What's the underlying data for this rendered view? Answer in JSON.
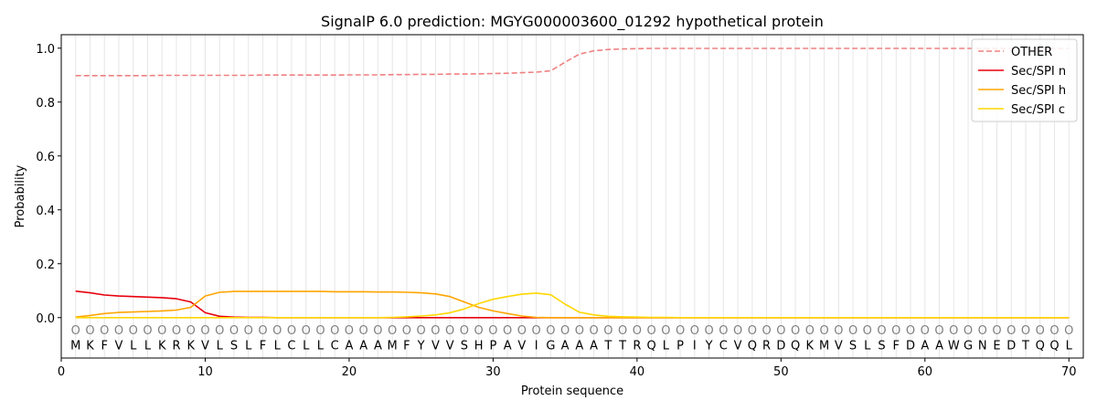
{
  "chart_data": {
    "type": "line",
    "title": "SignalP 6.0 prediction: MGYG000003600_01292 hypothetical protein",
    "xlabel": "Protein sequence",
    "ylabel": "Probability",
    "xlim": [
      0,
      71
    ],
    "ylim": [
      -0.15,
      1.05
    ],
    "xticks": [
      0,
      10,
      20,
      30,
      40,
      50,
      60,
      70
    ],
    "yticks": [
      0.0,
      0.2,
      0.4,
      0.6,
      0.8,
      1.0
    ],
    "ytick_labels": [
      "0.0",
      "0.2",
      "0.4",
      "0.6",
      "0.8",
      "1.0"
    ],
    "grid": "vertical lines at each residue",
    "legend_position": "top-right",
    "sequence": [
      "M",
      "K",
      "F",
      "V",
      "L",
      "L",
      "K",
      "R",
      "K",
      "V",
      "L",
      "S",
      "L",
      "F",
      "L",
      "C",
      "L",
      "L",
      "C",
      "A",
      "A",
      "A",
      "M",
      "F",
      "Y",
      "V",
      "V",
      "S",
      "H",
      "P",
      "A",
      "V",
      "I",
      "G",
      "A",
      "A",
      "A",
      "T",
      "T",
      "R",
      "Q",
      "L",
      "P",
      "I",
      "Y",
      "C",
      "V",
      "Q",
      "R",
      "D",
      "Q",
      "K",
      "M",
      "V",
      "S",
      "L",
      "S",
      "F",
      "D",
      "A",
      "A",
      "W",
      "G",
      "N",
      "E",
      "D",
      "T",
      "Q",
      "Q",
      "L"
    ],
    "region_marker": "O",
    "x": [
      1,
      2,
      3,
      4,
      5,
      6,
      7,
      8,
      9,
      10,
      11,
      12,
      13,
      14,
      15,
      16,
      17,
      18,
      19,
      20,
      21,
      22,
      23,
      24,
      25,
      26,
      27,
      28,
      29,
      30,
      31,
      32,
      33,
      34,
      35,
      36,
      37,
      38,
      39,
      40,
      41,
      42,
      43,
      44,
      45,
      46,
      47,
      48,
      49,
      50,
      51,
      52,
      53,
      54,
      55,
      56,
      57,
      58,
      59,
      60,
      61,
      62,
      63,
      64,
      65,
      66,
      67,
      68,
      69,
      70
    ],
    "series": [
      {
        "name": "OTHER",
        "color": "#f08080",
        "style": "dashed",
        "values": [
          0.898,
          0.898,
          0.898,
          0.898,
          0.898,
          0.898,
          0.899,
          0.899,
          0.899,
          0.899,
          0.899,
          0.899,
          0.899,
          0.9,
          0.9,
          0.9,
          0.9,
          0.9,
          0.9,
          0.901,
          0.901,
          0.901,
          0.902,
          0.902,
          0.903,
          0.903,
          0.904,
          0.904,
          0.905,
          0.906,
          0.907,
          0.909,
          0.911,
          0.916,
          0.948,
          0.978,
          0.99,
          0.995,
          0.997,
          0.998,
          0.999,
          0.999,
          0.999,
          0.999,
          0.999,
          0.999,
          0.999,
          0.999,
          0.999,
          0.999,
          0.999,
          0.999,
          0.999,
          0.999,
          0.999,
          0.999,
          0.999,
          0.999,
          0.999,
          0.999,
          0.999,
          0.999,
          0.999,
          0.999,
          0.999,
          0.999,
          0.999,
          0.999,
          0.999,
          0.999
        ]
      },
      {
        "name": "Sec/SPI n",
        "color": "#e8000b",
        "style": "solid",
        "values": [
          0.098,
          0.092,
          0.084,
          0.08,
          0.078,
          0.076,
          0.074,
          0.07,
          0.058,
          0.018,
          0.005,
          0.002,
          0.001,
          0.001,
          0,
          0,
          0,
          0,
          0,
          0,
          0,
          0,
          0,
          0,
          0,
          0,
          0,
          0,
          0,
          0,
          0,
          0,
          0,
          0,
          0,
          0,
          0,
          0,
          0,
          0,
          0,
          0,
          0,
          0,
          0,
          0,
          0,
          0,
          0,
          0,
          0,
          0,
          0,
          0,
          0,
          0,
          0,
          0,
          0,
          0,
          0,
          0,
          0,
          0,
          0,
          0,
          0,
          0,
          0,
          0
        ]
      },
      {
        "name": "Sec/SPI h",
        "color": "#ffa500",
        "style": "solid",
        "values": [
          0.002,
          0.008,
          0.015,
          0.019,
          0.021,
          0.023,
          0.025,
          0.028,
          0.038,
          0.08,
          0.094,
          0.097,
          0.097,
          0.097,
          0.097,
          0.097,
          0.097,
          0.097,
          0.096,
          0.096,
          0.096,
          0.095,
          0.095,
          0.094,
          0.092,
          0.088,
          0.078,
          0.058,
          0.038,
          0.025,
          0.015,
          0.006,
          0.001,
          0,
          0,
          0,
          0,
          0,
          0,
          0,
          0,
          0,
          0,
          0,
          0,
          0,
          0,
          0,
          0,
          0,
          0,
          0,
          0,
          0,
          0,
          0,
          0,
          0,
          0,
          0,
          0,
          0,
          0,
          0,
          0,
          0,
          0,
          0,
          0,
          0
        ]
      },
      {
        "name": "Sec/SPI c",
        "color": "#ffd700",
        "style": "solid",
        "values": [
          0,
          0,
          0,
          0,
          0,
          0,
          0,
          0,
          0,
          0,
          0,
          0,
          0,
          0,
          0,
          0,
          0,
          0,
          0,
          0,
          0,
          0,
          0.001,
          0.003,
          0.006,
          0.01,
          0.018,
          0.032,
          0.052,
          0.068,
          0.078,
          0.087,
          0.091,
          0.085,
          0.05,
          0.02,
          0.01,
          0.005,
          0.003,
          0.002,
          0.001,
          0.001,
          0,
          0,
          0,
          0,
          0,
          0,
          0,
          0,
          0,
          0,
          0,
          0,
          0,
          0,
          0,
          0,
          0,
          0,
          0,
          0,
          0,
          0,
          0,
          0,
          0,
          0,
          0,
          0
        ]
      }
    ]
  }
}
